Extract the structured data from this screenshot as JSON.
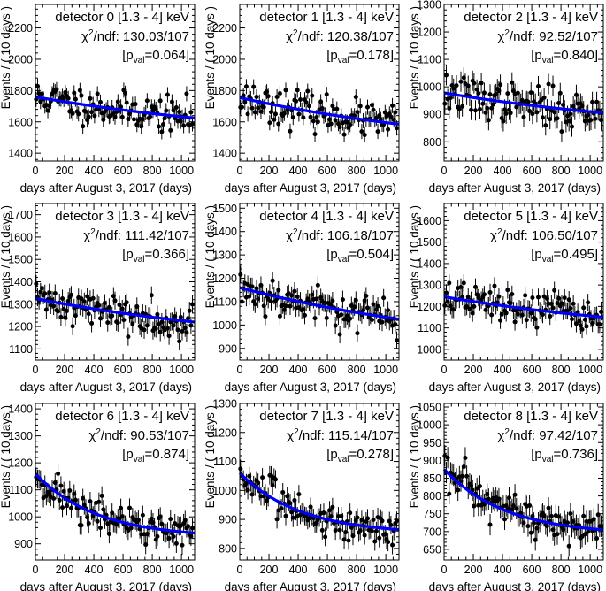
{
  "figure": {
    "ylabel": "Events / ( 10 days )",
    "xlabel": "days after August 3, 2017 (days)",
    "chi_prefix": "χ",
    "chi_sup": "2",
    "chi_suffix": "/ndf: ",
    "pval_open": "[p",
    "pval_sub": "val",
    "pval_eq": "=",
    "pval_close": "]"
  },
  "chart_data": [
    {
      "type": "scatter",
      "title": "detector 0 [1.3 - 4] keV",
      "chi2": "130.03/107",
      "pval": "0.064",
      "xlim": [
        0,
        1090
      ],
      "ylim": [
        1350,
        2350
      ],
      "yticks": [
        1400,
        1600,
        1800,
        2000,
        2200
      ],
      "xticks": [
        0,
        200,
        400,
        600,
        800,
        1000
      ],
      "fit": {
        "type": "exp",
        "base": 1300,
        "amp": 465,
        "tau": 3600,
        "start": 1760,
        "end": 1625
      },
      "noise": 55,
      "err": 48,
      "seed": 11
    },
    {
      "type": "scatter",
      "title": "detector 1 [1.3 - 4] keV",
      "chi2": "120.38/107",
      "pval": "0.178",
      "xlim": [
        0,
        1090
      ],
      "ylim": [
        1350,
        2350
      ],
      "yticks": [
        1400,
        1600,
        1800,
        2000,
        2200
      ],
      "xticks": [
        0,
        200,
        400,
        600,
        800,
        1000
      ],
      "fit": {
        "type": "exp",
        "start": 1755,
        "end": 1585
      },
      "noise": 55,
      "err": 48,
      "seed": 23
    },
    {
      "type": "scatter",
      "title": "detector 2 [1.3 - 4] keV",
      "chi2": "92.52/107",
      "pval": "0.840",
      "xlim": [
        0,
        1090
      ],
      "ylim": [
        730,
        1300
      ],
      "yticks": [
        800,
        900,
        1000,
        1100,
        1200,
        1300
      ],
      "xticks": [
        0,
        200,
        400,
        600,
        800,
        1000
      ],
      "fit": {
        "type": "exp",
        "start": 978,
        "end": 905
      },
      "noise": 35,
      "err": 37,
      "seed": 37
    },
    {
      "type": "scatter",
      "title": "detector 3 [1.3 - 4] keV",
      "chi2": "111.42/107",
      "pval": "0.366",
      "xlim": [
        0,
        1090
      ],
      "ylim": [
        1050,
        1750
      ],
      "yticks": [
        1100,
        1200,
        1300,
        1400,
        1500,
        1600,
        1700
      ],
      "xticks": [
        0,
        200,
        400,
        600,
        800,
        1000
      ],
      "fit": {
        "type": "exp",
        "start": 1325,
        "end": 1220
      },
      "noise": 40,
      "err": 40,
      "seed": 41
    },
    {
      "type": "scatter",
      "title": "detector 4 [1.3 - 4] keV",
      "chi2": "106.18/107",
      "pval": "0.504",
      "xlim": [
        0,
        1090
      ],
      "ylim": [
        850,
        1520
      ],
      "yticks": [
        900,
        1000,
        1100,
        1200,
        1300,
        1400,
        1500
      ],
      "xticks": [
        0,
        200,
        400,
        600,
        800,
        1000
      ],
      "fit": {
        "type": "exp",
        "start": 1160,
        "end": 1025
      },
      "noise": 40,
      "err": 38,
      "seed": 53
    },
    {
      "type": "scatter",
      "title": "detector 5 [1.3 - 4] keV",
      "chi2": "106.50/107",
      "pval": "0.495",
      "xlim": [
        0,
        1090
      ],
      "ylim": [
        950,
        1680
      ],
      "yticks": [
        1000,
        1100,
        1200,
        1300,
        1400,
        1500,
        1600
      ],
      "xticks": [
        0,
        200,
        400,
        600,
        800,
        1000
      ],
      "fit": {
        "type": "exp",
        "start": 1245,
        "end": 1150
      },
      "noise": 40,
      "err": 40,
      "seed": 67
    },
    {
      "type": "scatter",
      "title": "detector 6 [1.3 - 4] keV",
      "chi2": "90.53/107",
      "pval": "0.874",
      "xlim": [
        0,
        1090
      ],
      "ylim": [
        840,
        1420
      ],
      "yticks": [
        900,
        1000,
        1100,
        1200,
        1300,
        1400
      ],
      "xticks": [
        0,
        200,
        400,
        600,
        800,
        1000
      ],
      "fit": {
        "type": "exp2",
        "start": 1160,
        "end": 940
      },
      "noise": 32,
      "err": 35,
      "seed": 71
    },
    {
      "type": "scatter",
      "title": "detector 7 [1.3 - 4] keV",
      "chi2": "115.14/107",
      "pval": "0.278",
      "xlim": [
        0,
        1090
      ],
      "ylim": [
        760,
        1300
      ],
      "yticks": [
        800,
        900,
        1000,
        1100,
        1200,
        1300
      ],
      "xticks": [
        0,
        200,
        400,
        600,
        800,
        1000
      ],
      "fit": {
        "type": "exp2",
        "start": 1060,
        "end": 865
      },
      "noise": 30,
      "err": 32,
      "seed": 83
    },
    {
      "type": "scatter",
      "title": "detector 8 [1.3 - 4] keV",
      "chi2": "97.42/107",
      "pval": "0.736",
      "xlim": [
        0,
        1090
      ],
      "ylim": [
        620,
        1060
      ],
      "yticks": [
        650,
        700,
        750,
        800,
        850,
        900,
        950,
        1000,
        1050
      ],
      "xticks": [
        0,
        200,
        400,
        600,
        800,
        1000
      ],
      "fit": {
        "type": "exp2",
        "start": 875,
        "end": 705
      },
      "noise": 28,
      "err": 30,
      "seed": 97
    }
  ],
  "colors": {
    "fit": "#0000ff",
    "marker": "#000000",
    "frame": "#000000"
  }
}
